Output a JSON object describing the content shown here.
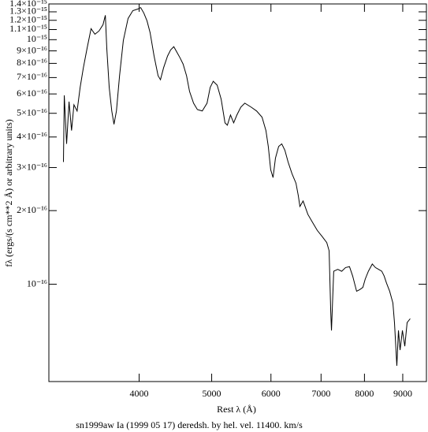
{
  "chart_data": {
    "type": "line",
    "title": "sn1999aw Ia (1999 05 17) deredsh. by hel. vel. 11400. km/s",
    "x_label": "Rest λ (Å)",
    "y_label": "fλ (ergs/(s cm**2 Å) or arbitrary units)",
    "xlog": true,
    "ylog": true,
    "xlim": [
      3030,
      9680
    ],
    "ylim": [
      4e-17,
      1.4e-15
    ],
    "xticks": [
      4000,
      5000,
      6000,
      7000,
      8000,
      9000
    ],
    "yticks": [
      {
        "value": 1e-16,
        "label": "10⁻¹⁶"
      },
      {
        "value": 2e-16,
        "label": "2×10⁻¹⁶"
      },
      {
        "value": 3e-16,
        "label": "3×10⁻¹⁶"
      },
      {
        "value": 4e-16,
        "label": "4×10⁻¹⁶"
      },
      {
        "value": 5e-16,
        "label": "5×10⁻¹⁶"
      },
      {
        "value": 6e-16,
        "label": "6×10⁻¹⁶"
      },
      {
        "value": 7e-16,
        "label": "7×10⁻¹⁶"
      },
      {
        "value": 8e-16,
        "label": "8×10⁻¹⁶"
      },
      {
        "value": 9e-16,
        "label": "9×10⁻¹⁶"
      },
      {
        "value": 1e-15,
        "label": "10⁻¹⁵"
      },
      {
        "value": 1.1e-15,
        "label": "1.1×10⁻¹⁵"
      },
      {
        "value": 1.2e-15,
        "label": "1.2×10⁻¹⁵"
      },
      {
        "value": 1.3e-15,
        "label": "1.3×10⁻¹⁵"
      },
      {
        "value": 1.4e-15,
        "label": "1.4×10⁻¹⁵"
      }
    ],
    "color": "#000000",
    "x": [
      3169,
      3177,
      3200,
      3224,
      3249,
      3273,
      3305,
      3336,
      3369,
      3408,
      3450,
      3491,
      3535,
      3579,
      3605,
      3621,
      3648,
      3677,
      3702,
      3730,
      3766,
      3810,
      3866,
      3923,
      3982,
      4019,
      4058,
      4098,
      4137,
      4188,
      4240,
      4271,
      4312,
      4365,
      4407,
      4450,
      4492,
      4535,
      4579,
      4628,
      4671,
      4729,
      4785,
      4857,
      4929,
      4977,
      5024,
      5085,
      5148,
      5209,
      5247,
      5298,
      5350,
      5403,
      5469,
      5536,
      5645,
      5741,
      5838,
      5908,
      5951,
      5995,
      6039,
      6084,
      6144,
      6203,
      6263,
      6325,
      6402,
      6480,
      6527,
      6559,
      6624,
      6722,
      6819,
      6919,
      7021,
      7124,
      7176,
      7211,
      7228,
      7278,
      7369,
      7459,
      7548,
      7640,
      7715,
      7809,
      7884,
      7961,
      8019,
      8097,
      8195,
      8275,
      8356,
      8438,
      8500,
      8562,
      8645,
      8731,
      8774,
      8838,
      8882,
      8926,
      8991,
      9057,
      9122,
      9209
    ],
    "values": [
      3.16e-16,
      5.92e-16,
      3.75e-16,
      5.58e-16,
      4.25e-16,
      5.42e-16,
      5.11e-16,
      6.38e-16,
      7.67e-16,
      9.22e-16,
      1.109e-15,
      1.053e-15,
      1.085e-15,
      1.151e-15,
      1.258e-15,
      9.22e-16,
      6.38e-16,
      5.11e-16,
      4.51e-16,
      5.11e-16,
      7.12e-16,
      9.93e-16,
      1.221e-15,
      1.314e-15,
      1.334e-15,
      1.353e-15,
      1.285e-15,
      1.194e-15,
      1.069e-15,
      8.57e-16,
      7.12e-16,
      6.86e-16,
      7.67e-16,
      8.57e-16,
      9.08e-16,
      9.36e-16,
      8.89e-16,
      8.44e-16,
      7.95e-16,
      7.12e-16,
      6.14e-16,
      5.5e-16,
      5.18e-16,
      5.11e-16,
      5.5e-16,
      6.38e-16,
      6.76e-16,
      6.52e-16,
      5.71e-16,
      4.57e-16,
      4.47e-16,
      4.92e-16,
      4.57e-16,
      4.92e-16,
      5.3e-16,
      5.5e-16,
      5.3e-16,
      5.11e-16,
      4.82e-16,
      4.25e-16,
      3.66e-16,
      2.94e-16,
      2.73e-16,
      3.28e-16,
      3.66e-16,
      3.75e-16,
      3.53e-16,
      3.16e-16,
      2.83e-16,
      2.59e-16,
      2.3e-16,
      2.08e-16,
      2.19e-16,
      1.93e-16,
      1.79e-16,
      1.66e-16,
      1.57e-16,
      1.48e-16,
      1.37e-16,
      7.78e-17,
      6.47e-17,
      1.13e-16,
      1.15e-16,
      1.13e-16,
      1.17e-16,
      1.18e-16,
      1.08e-16,
      9.36e-17,
      9.5e-17,
      9.71e-17,
      1.05e-16,
      1.13e-16,
      1.21e-16,
      1.17e-16,
      1.15e-16,
      1.13e-16,
      1.08e-16,
      1.01e-16,
      9.36e-17,
      8.38e-17,
      6.97e-17,
      4.64e-17,
      6.47e-17,
      5.38e-17,
      6.47e-17,
      5.58e-17,
      6.97e-17,
      7.23e-17
    ]
  }
}
